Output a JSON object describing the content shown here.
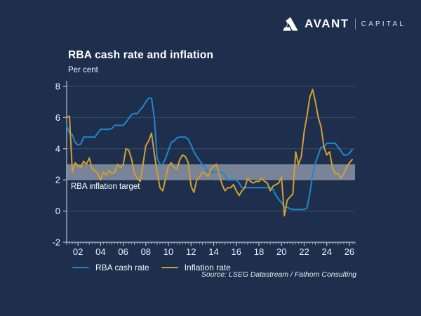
{
  "brand": {
    "name": "AVANT",
    "suffix": "CAPITAL"
  },
  "chart": {
    "title": "RBA cash rate and inflation",
    "unit": "Per cent",
    "band_label": "RBA inflation target",
    "source": "Source: LSEG Datastream / Fathom Consulting"
  },
  "legend": [
    {
      "label": "RBA cash rate",
      "color": "#2187cd"
    },
    {
      "label": "Inflation rate",
      "color": "#d3a02d"
    }
  ],
  "colors": {
    "background": "#1e2f4e",
    "cash_rate_line": "#2187cd",
    "inflation_line": "#d3a02d",
    "target_band": "rgba(233,238,245,0.45)",
    "gridline": "rgba(170,185,205,0.22)",
    "axis": "#b6c0cf",
    "tick_text": "#eef2f8"
  },
  "chart_data": {
    "type": "line",
    "title": "RBA cash rate and inflation",
    "ylabel": "Per cent",
    "xlabel": "",
    "ylim": [
      -2,
      8
    ],
    "xlim": [
      2001,
      2026.5
    ],
    "grid": true,
    "legend_position": "bottom-left",
    "y_ticks": [
      8,
      6,
      4,
      2,
      0,
      -2
    ],
    "x_ticks": [
      {
        "value": 2002,
        "label": "02"
      },
      {
        "value": 2004,
        "label": "04"
      },
      {
        "value": 2006,
        "label": "06"
      },
      {
        "value": 2008,
        "label": "08"
      },
      {
        "value": 2010,
        "label": "10"
      },
      {
        "value": 2012,
        "label": "12"
      },
      {
        "value": 2014,
        "label": "14"
      },
      {
        "value": 2016,
        "label": "16"
      },
      {
        "value": 2018,
        "label": "18"
      },
      {
        "value": 2020,
        "label": "20"
      },
      {
        "value": 2022,
        "label": "22"
      },
      {
        "value": 2024,
        "label": "24"
      },
      {
        "value": 2026,
        "label": "26"
      }
    ],
    "target_band": {
      "from": 2,
      "to": 3,
      "label": "RBA inflation target"
    },
    "series": [
      {
        "name": "RBA cash rate",
        "color": "#2187cd",
        "points": [
          [
            2001.0,
            5.5
          ],
          [
            2001.25,
            5.0
          ],
          [
            2001.5,
            4.9
          ],
          [
            2001.75,
            4.4
          ],
          [
            2002.0,
            4.25
          ],
          [
            2002.25,
            4.3
          ],
          [
            2002.5,
            4.75
          ],
          [
            2002.75,
            4.75
          ],
          [
            2003.0,
            4.75
          ],
          [
            2003.25,
            4.75
          ],
          [
            2003.5,
            4.75
          ],
          [
            2003.75,
            5.0
          ],
          [
            2004.0,
            5.25
          ],
          [
            2004.25,
            5.25
          ],
          [
            2004.5,
            5.25
          ],
          [
            2004.75,
            5.25
          ],
          [
            2005.0,
            5.3
          ],
          [
            2005.25,
            5.5
          ],
          [
            2005.5,
            5.5
          ],
          [
            2005.75,
            5.5
          ],
          [
            2006.0,
            5.5
          ],
          [
            2006.25,
            5.7
          ],
          [
            2006.5,
            5.95
          ],
          [
            2006.75,
            6.2
          ],
          [
            2007.0,
            6.25
          ],
          [
            2007.25,
            6.25
          ],
          [
            2007.5,
            6.5
          ],
          [
            2007.75,
            6.7
          ],
          [
            2008.0,
            7.0
          ],
          [
            2008.25,
            7.25
          ],
          [
            2008.5,
            7.25
          ],
          [
            2008.75,
            6.0
          ],
          [
            2009.0,
            3.4
          ],
          [
            2009.25,
            3.0
          ],
          [
            2009.5,
            3.0
          ],
          [
            2009.75,
            3.4
          ],
          [
            2010.0,
            3.9
          ],
          [
            2010.25,
            4.4
          ],
          [
            2010.5,
            4.5
          ],
          [
            2010.75,
            4.7
          ],
          [
            2011.0,
            4.75
          ],
          [
            2011.25,
            4.75
          ],
          [
            2011.5,
            4.75
          ],
          [
            2011.75,
            4.6
          ],
          [
            2012.0,
            4.25
          ],
          [
            2012.25,
            3.8
          ],
          [
            2012.5,
            3.5
          ],
          [
            2012.75,
            3.25
          ],
          [
            2013.0,
            3.0
          ],
          [
            2013.25,
            2.8
          ],
          [
            2013.5,
            2.5
          ],
          [
            2013.75,
            2.5
          ],
          [
            2014.0,
            2.5
          ],
          [
            2014.25,
            2.5
          ],
          [
            2014.5,
            2.5
          ],
          [
            2014.75,
            2.5
          ],
          [
            2015.0,
            2.3
          ],
          [
            2015.25,
            2.0
          ],
          [
            2015.5,
            2.0
          ],
          [
            2015.75,
            2.0
          ],
          [
            2016.0,
            2.0
          ],
          [
            2016.25,
            1.8
          ],
          [
            2016.5,
            1.5
          ],
          [
            2016.75,
            1.5
          ],
          [
            2017.0,
            1.5
          ],
          [
            2017.25,
            1.5
          ],
          [
            2017.5,
            1.5
          ],
          [
            2017.75,
            1.5
          ],
          [
            2018.0,
            1.5
          ],
          [
            2018.25,
            1.5
          ],
          [
            2018.5,
            1.5
          ],
          [
            2018.75,
            1.5
          ],
          [
            2019.0,
            1.5
          ],
          [
            2019.25,
            1.4
          ],
          [
            2019.5,
            1.0
          ],
          [
            2019.75,
            0.75
          ],
          [
            2020.0,
            0.55
          ],
          [
            2020.25,
            0.25
          ],
          [
            2020.5,
            0.25
          ],
          [
            2020.75,
            0.15
          ],
          [
            2021.0,
            0.1
          ],
          [
            2021.25,
            0.1
          ],
          [
            2021.5,
            0.1
          ],
          [
            2021.75,
            0.1
          ],
          [
            2022.0,
            0.1
          ],
          [
            2022.25,
            0.2
          ],
          [
            2022.5,
            1.1
          ],
          [
            2022.75,
            2.35
          ],
          [
            2023.0,
            3.1
          ],
          [
            2023.25,
            3.6
          ],
          [
            2023.5,
            4.1
          ],
          [
            2023.75,
            4.1
          ],
          [
            2024.0,
            4.35
          ],
          [
            2024.25,
            4.35
          ],
          [
            2024.5,
            4.35
          ],
          [
            2024.75,
            4.35
          ],
          [
            2025.0,
            4.1
          ],
          [
            2025.25,
            3.85
          ],
          [
            2025.5,
            3.6
          ],
          [
            2025.75,
            3.6
          ],
          [
            2026.0,
            3.7
          ],
          [
            2026.25,
            3.95
          ]
        ]
      },
      {
        "name": "Inflation rate",
        "color": "#d3a02d",
        "points": [
          [
            2001.0,
            6.0
          ],
          [
            2001.25,
            6.1
          ],
          [
            2001.5,
            2.5
          ],
          [
            2001.75,
            3.1
          ],
          [
            2002.0,
            2.9
          ],
          [
            2002.25,
            2.8
          ],
          [
            2002.5,
            3.2
          ],
          [
            2002.75,
            3.0
          ],
          [
            2003.0,
            3.4
          ],
          [
            2003.25,
            2.7
          ],
          [
            2003.5,
            2.6
          ],
          [
            2003.75,
            2.4
          ],
          [
            2004.0,
            2.0
          ],
          [
            2004.25,
            2.5
          ],
          [
            2004.5,
            2.3
          ],
          [
            2004.75,
            2.6
          ],
          [
            2005.0,
            2.4
          ],
          [
            2005.25,
            2.5
          ],
          [
            2005.5,
            3.0
          ],
          [
            2005.75,
            2.8
          ],
          [
            2006.0,
            3.0
          ],
          [
            2006.25,
            4.0
          ],
          [
            2006.5,
            3.9
          ],
          [
            2006.75,
            3.3
          ],
          [
            2007.0,
            2.4
          ],
          [
            2007.25,
            2.1
          ],
          [
            2007.5,
            1.9
          ],
          [
            2007.75,
            3.0
          ],
          [
            2008.0,
            4.2
          ],
          [
            2008.25,
            4.5
          ],
          [
            2008.5,
            5.0
          ],
          [
            2008.75,
            3.7
          ],
          [
            2009.0,
            2.5
          ],
          [
            2009.25,
            1.5
          ],
          [
            2009.5,
            1.3
          ],
          [
            2009.75,
            2.1
          ],
          [
            2010.0,
            2.9
          ],
          [
            2010.25,
            3.1
          ],
          [
            2010.5,
            2.8
          ],
          [
            2010.75,
            2.7
          ],
          [
            2011.0,
            3.3
          ],
          [
            2011.25,
            3.6
          ],
          [
            2011.5,
            3.5
          ],
          [
            2011.75,
            3.1
          ],
          [
            2012.0,
            1.6
          ],
          [
            2012.25,
            1.2
          ],
          [
            2012.5,
            2.0
          ],
          [
            2012.75,
            2.2
          ],
          [
            2013.0,
            2.5
          ],
          [
            2013.25,
            2.4
          ],
          [
            2013.5,
            2.2
          ],
          [
            2013.75,
            2.7
          ],
          [
            2014.0,
            2.9
          ],
          [
            2014.25,
            3.0
          ],
          [
            2014.5,
            2.3
          ],
          [
            2014.75,
            1.7
          ],
          [
            2015.0,
            1.3
          ],
          [
            2015.25,
            1.5
          ],
          [
            2015.5,
            1.5
          ],
          [
            2015.75,
            1.7
          ],
          [
            2016.0,
            1.3
          ],
          [
            2016.25,
            1.0
          ],
          [
            2016.5,
            1.3
          ],
          [
            2016.75,
            1.5
          ],
          [
            2017.0,
            2.1
          ],
          [
            2017.25,
            1.9
          ],
          [
            2017.5,
            1.8
          ],
          [
            2017.75,
            1.9
          ],
          [
            2018.0,
            1.9
          ],
          [
            2018.25,
            2.1
          ],
          [
            2018.5,
            1.9
          ],
          [
            2018.75,
            1.8
          ],
          [
            2019.0,
            1.3
          ],
          [
            2019.25,
            1.6
          ],
          [
            2019.5,
            1.7
          ],
          [
            2019.75,
            1.8
          ],
          [
            2020.0,
            2.2
          ],
          [
            2020.25,
            -0.3
          ],
          [
            2020.5,
            0.7
          ],
          [
            2020.75,
            0.9
          ],
          [
            2021.0,
            1.1
          ],
          [
            2021.25,
            3.8
          ],
          [
            2021.5,
            3.0
          ],
          [
            2021.75,
            3.5
          ],
          [
            2022.0,
            5.1
          ],
          [
            2022.25,
            6.1
          ],
          [
            2022.5,
            7.3
          ],
          [
            2022.75,
            7.8
          ],
          [
            2023.0,
            7.0
          ],
          [
            2023.25,
            6.0
          ],
          [
            2023.5,
            5.4
          ],
          [
            2023.75,
            4.1
          ],
          [
            2024.0,
            3.6
          ],
          [
            2024.25,
            3.8
          ],
          [
            2024.5,
            2.8
          ],
          [
            2024.75,
            2.4
          ],
          [
            2025.0,
            2.4
          ],
          [
            2025.25,
            2.1
          ],
          [
            2025.5,
            2.4
          ],
          [
            2025.75,
            2.8
          ],
          [
            2026.0,
            3.1
          ],
          [
            2026.25,
            3.3
          ]
        ]
      }
    ],
    "source": "Source: LSEG Datastream / Fathom Consulting"
  }
}
